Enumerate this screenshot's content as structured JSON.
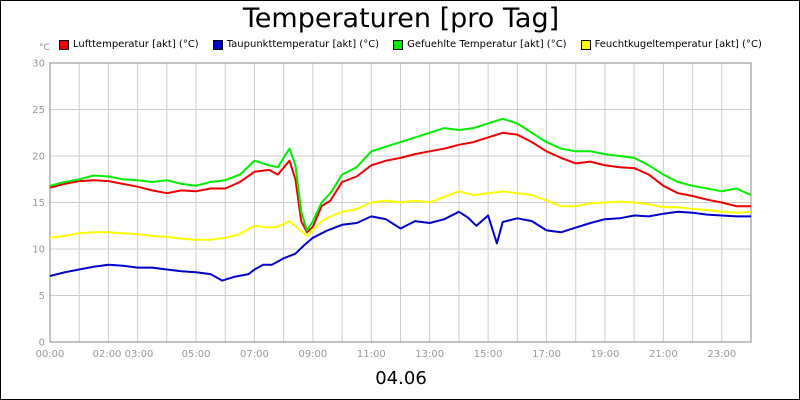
{
  "chart_data": {
    "type": "line",
    "title": "Temperaturen [pro Tag]",
    "unit_label": "°C",
    "date_label": "04.06",
    "ylim": [
      0,
      30
    ],
    "y_ticks": [
      "0",
      "5",
      "10",
      "15",
      "20",
      "25",
      "30"
    ],
    "x_range_hours": [
      0,
      24
    ],
    "x_ticks": [
      {
        "h": 0,
        "label": "00:00"
      },
      {
        "h": 2.5,
        "label": "02:00 03:00"
      },
      {
        "h": 5,
        "label": "05:00"
      },
      {
        "h": 7,
        "label": "07:00"
      },
      {
        "h": 9,
        "label": "09:00"
      },
      {
        "h": 11,
        "label": "11:00"
      },
      {
        "h": 13,
        "label": "13:00"
      },
      {
        "h": 15,
        "label": "15:00"
      },
      {
        "h": 17,
        "label": "17:00"
      },
      {
        "h": 19,
        "label": "19:00"
      },
      {
        "h": 21,
        "label": "21:00"
      },
      {
        "h": 23,
        "label": "23:00"
      }
    ],
    "grid": true,
    "legend_position": "top",
    "series": [
      {
        "name": "Lufttemperatur [akt] (°C)",
        "color": "#ee0000",
        "points": [
          [
            0,
            16.6
          ],
          [
            0.5,
            17.0
          ],
          [
            1,
            17.3
          ],
          [
            1.5,
            17.4
          ],
          [
            2,
            17.3
          ],
          [
            2.5,
            17.0
          ],
          [
            3,
            16.7
          ],
          [
            3.5,
            16.3
          ],
          [
            4,
            16.0
          ],
          [
            4.5,
            16.3
          ],
          [
            5,
            16.2
          ],
          [
            5.5,
            16.5
          ],
          [
            6,
            16.5
          ],
          [
            6.5,
            17.2
          ],
          [
            7,
            18.3
          ],
          [
            7.5,
            18.5
          ],
          [
            7.8,
            18.0
          ],
          [
            8.2,
            19.5
          ],
          [
            8.4,
            17.5
          ],
          [
            8.6,
            13.0
          ],
          [
            8.8,
            11.8
          ],
          [
            9.0,
            12.4
          ],
          [
            9.3,
            14.6
          ],
          [
            9.6,
            15.2
          ],
          [
            10,
            17.2
          ],
          [
            10.5,
            17.8
          ],
          [
            11,
            19.0
          ],
          [
            11.5,
            19.5
          ],
          [
            12,
            19.8
          ],
          [
            12.5,
            20.2
          ],
          [
            13,
            20.5
          ],
          [
            13.5,
            20.8
          ],
          [
            14,
            21.2
          ],
          [
            14.5,
            21.5
          ],
          [
            15,
            22.0
          ],
          [
            15.5,
            22.5
          ],
          [
            16,
            22.3
          ],
          [
            16.5,
            21.5
          ],
          [
            17,
            20.5
          ],
          [
            17.5,
            19.8
          ],
          [
            18,
            19.2
          ],
          [
            18.5,
            19.4
          ],
          [
            19,
            19.0
          ],
          [
            19.5,
            18.8
          ],
          [
            20,
            18.7
          ],
          [
            20.5,
            18.0
          ],
          [
            21,
            16.8
          ],
          [
            21.5,
            16.0
          ],
          [
            22,
            15.7
          ],
          [
            22.5,
            15.3
          ],
          [
            23,
            15.0
          ],
          [
            23.5,
            14.6
          ],
          [
            24,
            14.6
          ]
        ]
      },
      {
        "name": "Taupunkttemperatur [akt] (°C)",
        "color": "#0000cc",
        "points": [
          [
            0,
            7.1
          ],
          [
            0.5,
            7.5
          ],
          [
            1,
            7.8
          ],
          [
            1.5,
            8.1
          ],
          [
            2,
            8.3
          ],
          [
            2.5,
            8.2
          ],
          [
            3,
            8.0
          ],
          [
            3.5,
            8.0
          ],
          [
            4,
            7.8
          ],
          [
            4.5,
            7.6
          ],
          [
            5,
            7.5
          ],
          [
            5.5,
            7.3
          ],
          [
            5.9,
            6.6
          ],
          [
            6.3,
            7.0
          ],
          [
            6.8,
            7.3
          ],
          [
            7,
            7.8
          ],
          [
            7.3,
            8.3
          ],
          [
            7.6,
            8.3
          ],
          [
            8,
            9.0
          ],
          [
            8.4,
            9.5
          ],
          [
            8.7,
            10.4
          ],
          [
            9,
            11.2
          ],
          [
            9.5,
            12.0
          ],
          [
            10,
            12.6
          ],
          [
            10.5,
            12.8
          ],
          [
            11,
            13.5
          ],
          [
            11.5,
            13.2
          ],
          [
            12,
            12.2
          ],
          [
            12.5,
            13.0
          ],
          [
            13,
            12.8
          ],
          [
            13.5,
            13.2
          ],
          [
            14,
            14.0
          ],
          [
            14.3,
            13.4
          ],
          [
            14.6,
            12.5
          ],
          [
            15,
            13.6
          ],
          [
            15.3,
            10.6
          ],
          [
            15.5,
            12.9
          ],
          [
            16,
            13.3
          ],
          [
            16.5,
            13.0
          ],
          [
            17,
            12.0
          ],
          [
            17.5,
            11.8
          ],
          [
            18,
            12.3
          ],
          [
            18.5,
            12.8
          ],
          [
            19,
            13.2
          ],
          [
            19.5,
            13.3
          ],
          [
            20,
            13.6
          ],
          [
            20.5,
            13.5
          ],
          [
            21,
            13.8
          ],
          [
            21.5,
            14.0
          ],
          [
            22,
            13.9
          ],
          [
            22.5,
            13.7
          ],
          [
            23,
            13.6
          ],
          [
            23.5,
            13.5
          ],
          [
            24,
            13.5
          ]
        ]
      },
      {
        "name": "Gefuehlte Temperatur [akt] (°C)",
        "color": "#00ee00",
        "points": [
          [
            0,
            16.8
          ],
          [
            0.5,
            17.2
          ],
          [
            1,
            17.5
          ],
          [
            1.5,
            17.9
          ],
          [
            2,
            17.8
          ],
          [
            2.5,
            17.5
          ],
          [
            3,
            17.4
          ],
          [
            3.5,
            17.2
          ],
          [
            4,
            17.4
          ],
          [
            4.5,
            17.0
          ],
          [
            5,
            16.8
          ],
          [
            5.5,
            17.2
          ],
          [
            6,
            17.4
          ],
          [
            6.5,
            18.0
          ],
          [
            7,
            19.5
          ],
          [
            7.5,
            19.0
          ],
          [
            7.8,
            18.8
          ],
          [
            8.2,
            20.8
          ],
          [
            8.4,
            19.0
          ],
          [
            8.6,
            14.0
          ],
          [
            8.8,
            12.0
          ],
          [
            9.0,
            13.0
          ],
          [
            9.3,
            15.0
          ],
          [
            9.6,
            16.0
          ],
          [
            10,
            18.0
          ],
          [
            10.5,
            18.8
          ],
          [
            11,
            20.5
          ],
          [
            11.5,
            21.0
          ],
          [
            12,
            21.5
          ],
          [
            12.5,
            22.0
          ],
          [
            13,
            22.5
          ],
          [
            13.5,
            23.0
          ],
          [
            14,
            22.8
          ],
          [
            14.5,
            23.0
          ],
          [
            15,
            23.5
          ],
          [
            15.5,
            24.0
          ],
          [
            16,
            23.5
          ],
          [
            16.5,
            22.5
          ],
          [
            17,
            21.5
          ],
          [
            17.5,
            20.8
          ],
          [
            18,
            20.5
          ],
          [
            18.5,
            20.5
          ],
          [
            19,
            20.2
          ],
          [
            19.5,
            20.0
          ],
          [
            20,
            19.8
          ],
          [
            20.5,
            19.0
          ],
          [
            21,
            18.0
          ],
          [
            21.5,
            17.2
          ],
          [
            22,
            16.8
          ],
          [
            22.5,
            16.5
          ],
          [
            23,
            16.2
          ],
          [
            23.5,
            16.5
          ],
          [
            24,
            15.8
          ]
        ]
      },
      {
        "name": "Feuchtkugeltemperatur [akt] (°C)",
        "color": "#ffff00",
        "points": [
          [
            0,
            11.2
          ],
          [
            0.5,
            11.4
          ],
          [
            1,
            11.7
          ],
          [
            1.5,
            11.8
          ],
          [
            2,
            11.8
          ],
          [
            2.5,
            11.7
          ],
          [
            3,
            11.6
          ],
          [
            3.5,
            11.4
          ],
          [
            4,
            11.3
          ],
          [
            4.5,
            11.1
          ],
          [
            5,
            11.0
          ],
          [
            5.5,
            11.0
          ],
          [
            6,
            11.2
          ],
          [
            6.5,
            11.6
          ],
          [
            7,
            12.5
          ],
          [
            7.5,
            12.3
          ],
          [
            7.8,
            12.4
          ],
          [
            8.2,
            13.0
          ],
          [
            8.5,
            12.2
          ],
          [
            8.8,
            11.4
          ],
          [
            9.0,
            12.0
          ],
          [
            9.3,
            13.0
          ],
          [
            9.6,
            13.5
          ],
          [
            10,
            14.0
          ],
          [
            10.5,
            14.3
          ],
          [
            11,
            15.0
          ],
          [
            11.5,
            15.2
          ],
          [
            12,
            15.0
          ],
          [
            12.5,
            15.2
          ],
          [
            13,
            15.0
          ],
          [
            13.5,
            15.6
          ],
          [
            14,
            16.2
          ],
          [
            14.5,
            15.8
          ],
          [
            15,
            16.0
          ],
          [
            15.5,
            16.2
          ],
          [
            16,
            16.0
          ],
          [
            16.5,
            15.8
          ],
          [
            17,
            15.2
          ],
          [
            17.5,
            14.6
          ],
          [
            18,
            14.6
          ],
          [
            18.5,
            14.9
          ],
          [
            19,
            15.0
          ],
          [
            19.5,
            15.1
          ],
          [
            20,
            15.0
          ],
          [
            20.5,
            14.8
          ],
          [
            21,
            14.5
          ],
          [
            21.5,
            14.5
          ],
          [
            22,
            14.3
          ],
          [
            22.5,
            14.2
          ],
          [
            23,
            14.0
          ],
          [
            23.5,
            13.9
          ],
          [
            24,
            14.0
          ]
        ]
      }
    ]
  }
}
